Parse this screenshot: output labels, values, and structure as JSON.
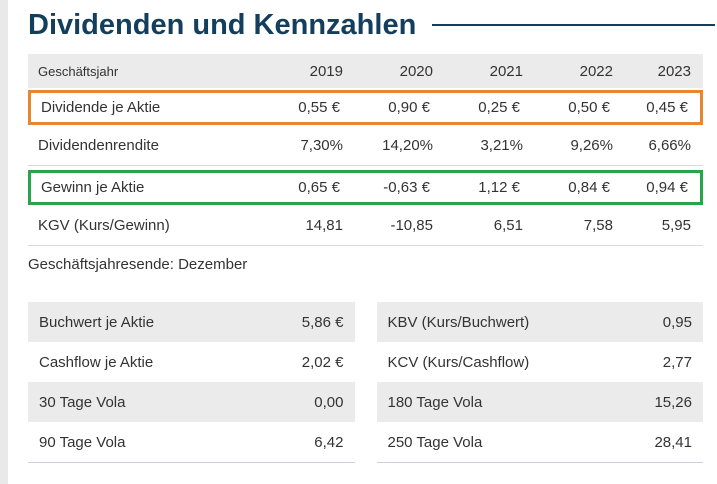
{
  "section": {
    "title": "Dividenden und Kennzahlen"
  },
  "colors": {
    "title_blue": "#133e5c",
    "highlight_orange": "#e8872e",
    "highlight_green": "#2aa44a",
    "header_row_bg": "#ebebeb",
    "row_separator": "#dadada",
    "table_bottom_border": "#c9d3d8",
    "text": "#333333"
  },
  "dividends_table": {
    "header": {
      "label": "Geschäftsjahr",
      "years": [
        "2019",
        "2020",
        "2021",
        "2022",
        "2023"
      ]
    },
    "rows": [
      {
        "label": "Dividende je Aktie",
        "highlight": "orange",
        "values": [
          "0,55 €",
          "0,90 €",
          "0,25 €",
          "0,50 €",
          "0,45 €"
        ]
      },
      {
        "label": "Dividendenrendite",
        "highlight": "none",
        "values": [
          "7,30%",
          "14,20%",
          "3,21%",
          "9,26%",
          "6,66%"
        ]
      },
      {
        "label": "Gewinn je Aktie",
        "highlight": "green",
        "values": [
          "0,65 €",
          "-0,63 €",
          "1,12 €",
          "0,84 €",
          "0,94 €"
        ]
      },
      {
        "label": "KGV (Kurs/Gewinn)",
        "highlight": "none",
        "values": [
          "14,81",
          "-10,85",
          "6,51",
          "7,58",
          "5,95"
        ]
      }
    ],
    "footnote": "Geschäftsjahresende: Dezember"
  },
  "metrics_left": {
    "rows": [
      {
        "label": "Buchwert je Aktie",
        "value": "5,86 €"
      },
      {
        "label": "Cashflow je Aktie",
        "value": "2,02 €"
      },
      {
        "label": "30 Tage Vola",
        "value": "0,00"
      },
      {
        "label": "90 Tage Vola",
        "value": "6,42"
      }
    ]
  },
  "metrics_right": {
    "rows": [
      {
        "label": "KBV (Kurs/Buchwert)",
        "value": "0,95"
      },
      {
        "label": "KCV (Kurs/Cashflow)",
        "value": "2,77"
      },
      {
        "label": "180 Tage Vola",
        "value": "15,26"
      },
      {
        "label": "250 Tage Vola",
        "value": "28,41"
      }
    ]
  }
}
